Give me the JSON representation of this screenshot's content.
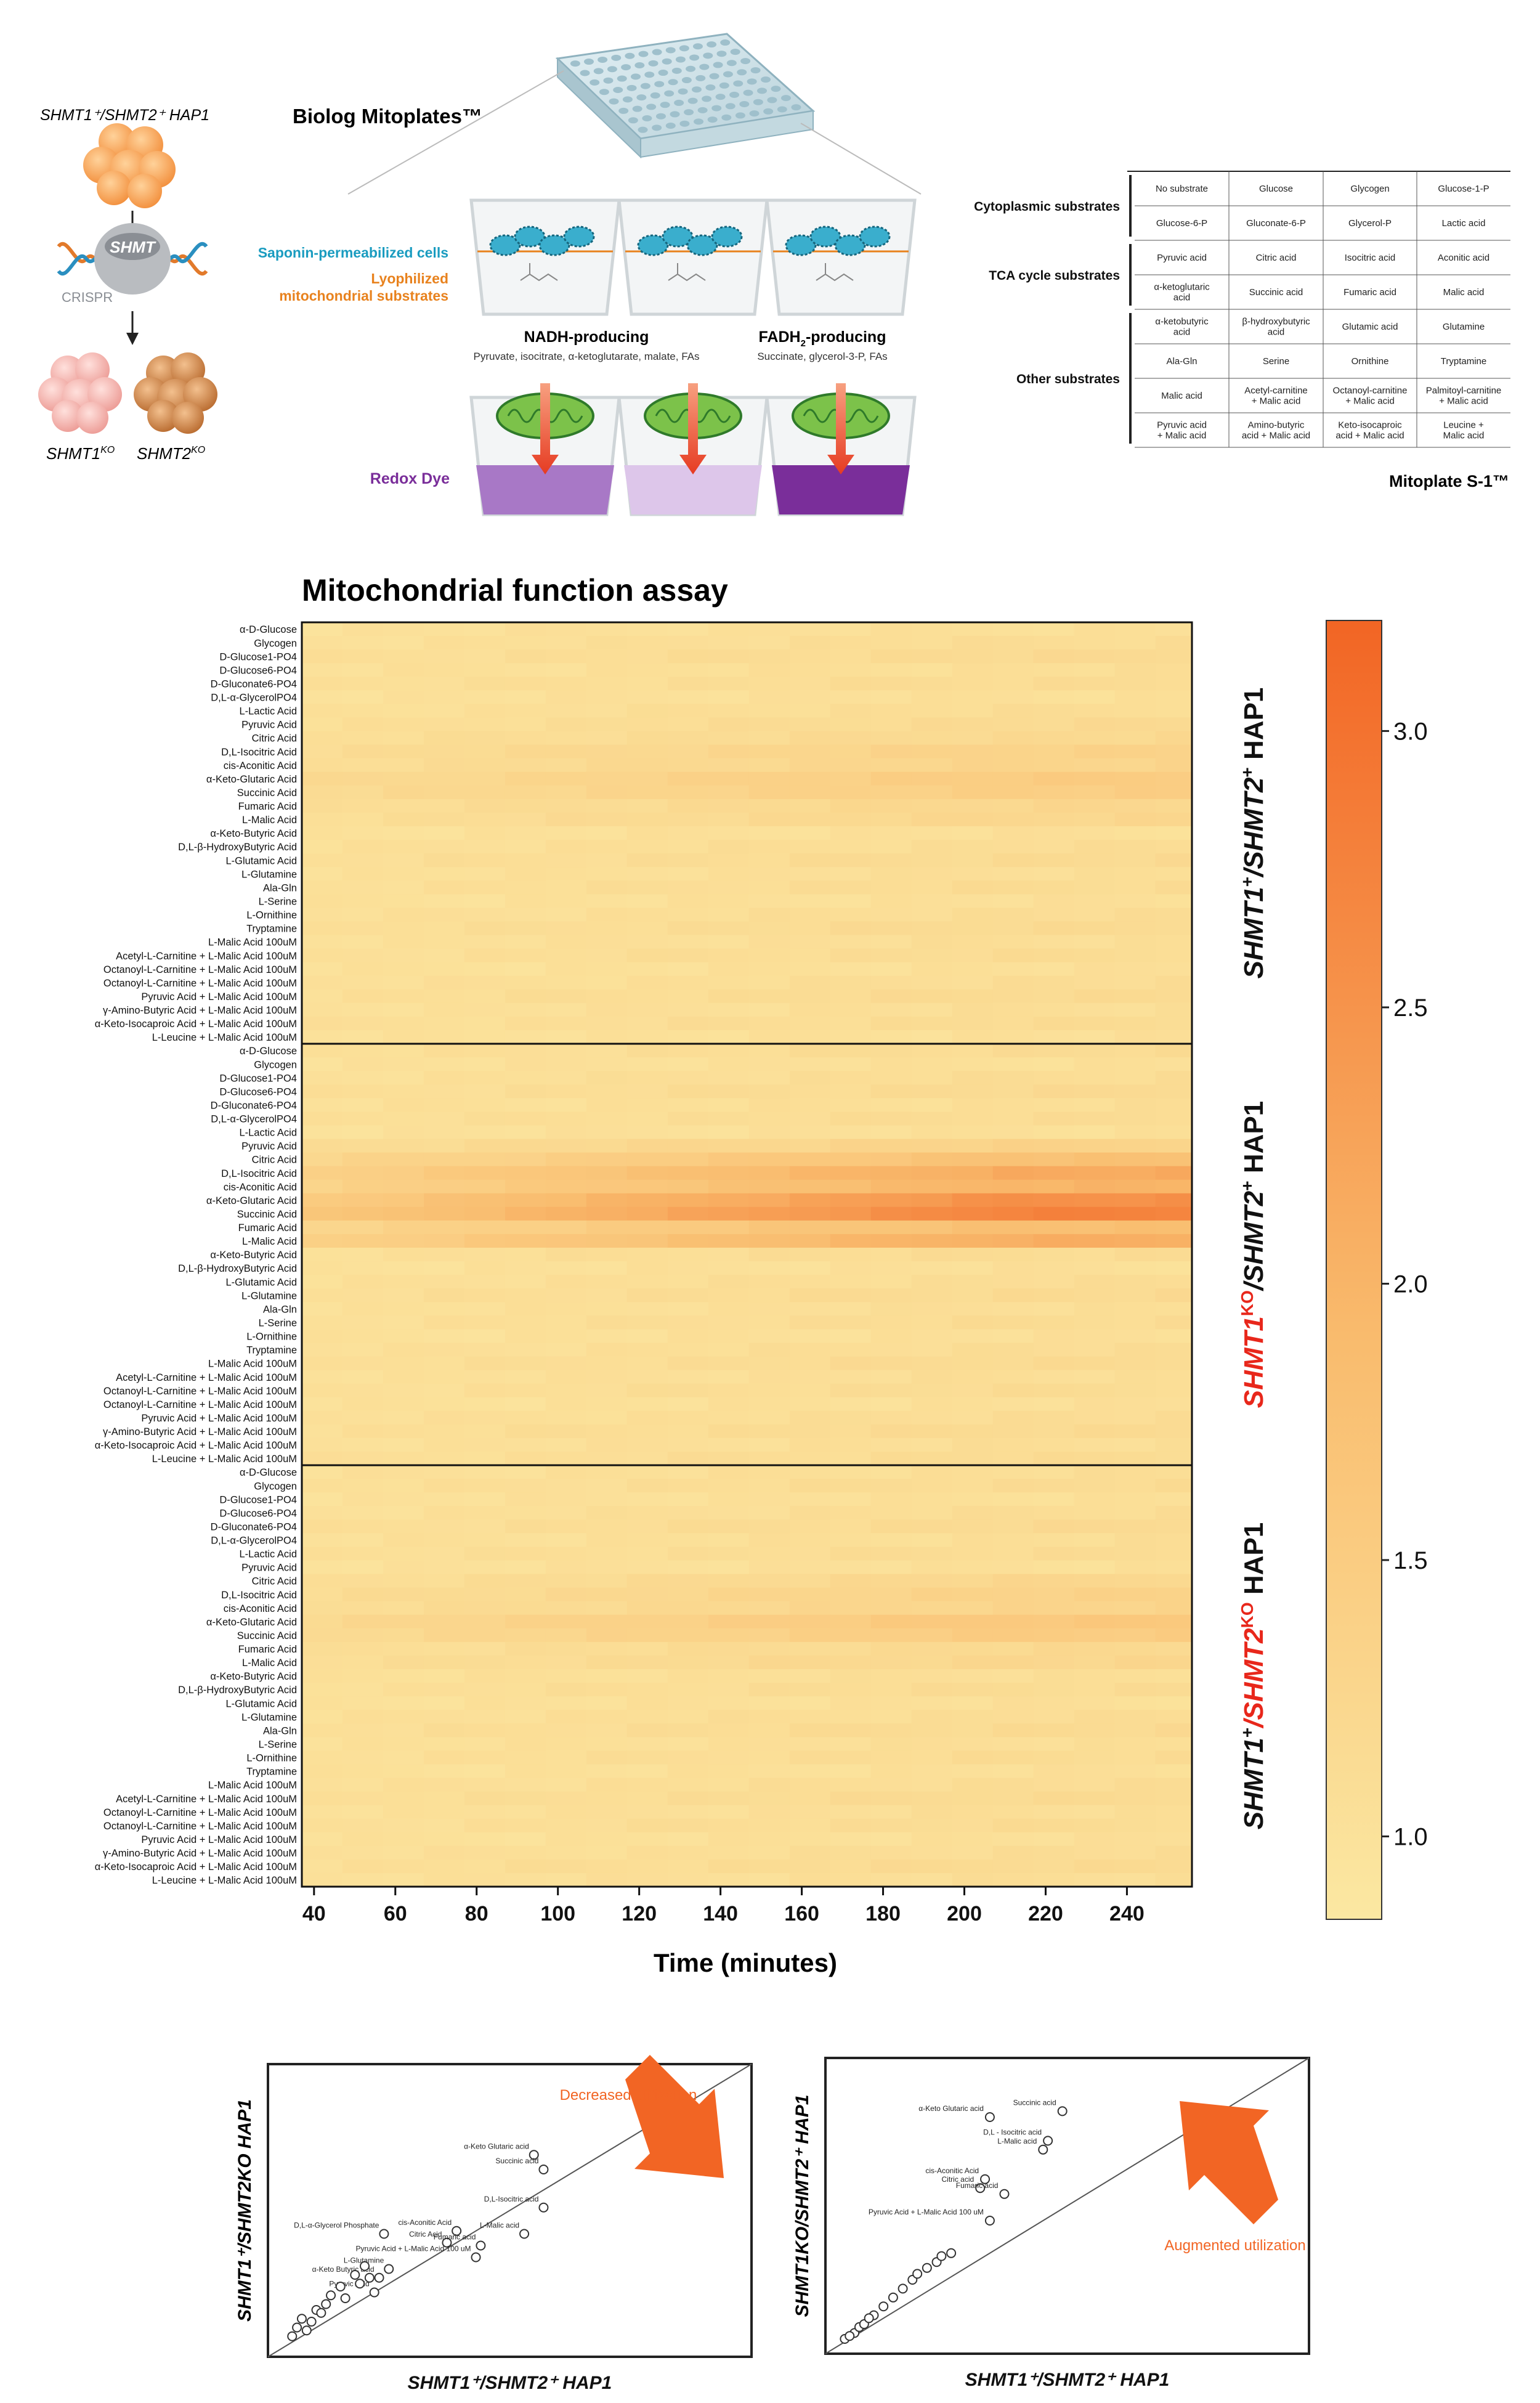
{
  "schematic": {
    "parent_line": "SHMT1⁺/SHMT2⁺ HAP1",
    "crispr_label": "CRISPR",
    "gene_label": "SHMT",
    "ko1": "SHMT1",
    "ko1_sup": "KO",
    "ko2": "SHMT2",
    "ko2_sup": "KO",
    "biolog_title": "Biolog Mitoplates™",
    "saponin_label": "Saponin-permeabilized cells",
    "lyophilized_label_1": "Lyophilized",
    "lyophilized_label_2": "mitochondrial substrates",
    "nadh_title": "NADH-producing",
    "nadh_sub": "Pyruvate, isocitrate, α-ketoglutarate, malate, FAs",
    "fadh_title_a": "FADH",
    "fadh_title_sub": "2",
    "fadh_title_b": "-producing",
    "fadh_sub": "Succinate, glycerol-3-P, FAs",
    "redox_label": "Redox Dye",
    "colors": {
      "teal": "#1a9cc0",
      "orange": "#e8821e",
      "purple": "#7a2e9a",
      "red_arrow": "#e8402a"
    }
  },
  "mitoplate": {
    "caption": "Mitoplate S-1™",
    "groups": [
      {
        "name": "Cytoplasmic substrates",
        "rows": [
          [
            "No substrate",
            "Glucose",
            "Glycogen",
            "Glucose-1-P"
          ],
          [
            "Glucose-6-P",
            "Gluconate-6-P",
            "Glycerol-P",
            "Lactic acid"
          ]
        ]
      },
      {
        "name": "TCA cycle substrates",
        "rows": [
          [
            "Pyruvic acid",
            "Citric acid",
            "Isocitric acid",
            "Aconitic acid"
          ],
          [
            "α-ketoglutaric acid",
            "Succinic acid",
            "Fumaric acid",
            "Malic acid"
          ]
        ]
      },
      {
        "name": "Other substrates",
        "rows": [
          [
            "α-ketobutyric acid",
            "β-hydroxybutyric acid",
            "Glutamic acid",
            "Glutamine"
          ],
          [
            "Ala-Gln",
            "Serine",
            "Ornithine",
            "Tryptamine"
          ],
          [
            "Malic acid",
            "Acetyl-carnitine + Malic acid",
            "Octanoyl-carnitine + Malic acid",
            "Palmitoyl-carnitine + Malic acid"
          ],
          [
            "Pyruvic acid + Malic acid",
            "Amino-butyric acid + Malic acid",
            "Keto-isocaproic acid + Malic acid",
            "Leucine + Malic acid"
          ]
        ]
      }
    ]
  },
  "heatmap": {
    "title": "Mitochondrial function assay",
    "x_label": "Time (minutes)",
    "x_ticks": [
      40,
      60,
      80,
      100,
      120,
      140,
      160,
      180,
      200,
      220,
      240
    ],
    "x_range": [
      37,
      256
    ],
    "time_step_minutes": 10,
    "colorbar_ticks": [
      "3.0",
      "2.5",
      "2.0",
      "1.5",
      "1.0"
    ],
    "colorbar_tick_values": [
      3.0,
      2.5,
      2.0,
      1.5,
      1.0
    ],
    "color_range": [
      0.85,
      3.2
    ],
    "color_low": "#fbe8a2",
    "color_high": "#f26524",
    "panel1_rows": [
      "α-D-Glucose",
      "Glycogen",
      "D-Glucose1-PO4",
      "D-Glucose6-PO4",
      "D-Gluconate6-PO4",
      "D,L-α-GlycerolPO4",
      "L-Lactic Acid",
      "Pyruvic Acid",
      "Citric Acid",
      "D,L-Isocitric Acid",
      "cis-Aconitic Acid",
      "α-Keto-Glutaric Acid",
      "Succinic Acid",
      "Fumaric Acid",
      "L-Malic Acid",
      "α-Keto-Butyric Acid",
      "D,L-β-HydroxyButyric Acid",
      "L-Glutamic Acid",
      "L-Glutamine",
      "Ala-Gln",
      "L-Serine",
      "L-Ornithine",
      "Tryptamine",
      "L-Malic Acid 100uM",
      "Acetyl-L-Carnitine + L-Malic Acid 100uM",
      "Octanoyl-L-Carnitine + L-Malic Acid 100uM",
      "Octanoyl-L-Carnitine + L-Malic Acid 100uM",
      "Pyruvic Acid + L-Malic Acid 100uM",
      "γ-Amino-Butyric Acid + L-Malic Acid 100uM",
      "α-Keto-Isocaproic Acid + L-Malic Acid 100uM",
      "L-Leucine + L-Malic Acid 100uM"
    ],
    "panel2_rows": [
      "α-D-Glucose",
      "Glycogen",
      "D-Glucose1-PO4",
      "D-Glucose6-PO4",
      "D-Gluconate6-PO4",
      "D,L-α-GlycerolPO4",
      "L-Lactic Acid",
      "Pyruvic Acid",
      "Citric Acid",
      "D,L-Isocitric Acid",
      "cis-Aconitic Acid",
      "α-Keto-Glutaric Acid",
      "Succinic Acid",
      "Fumaric Acid",
      "L-Malic Acid",
      "α-Keto-Butyric Acid",
      "D,L-β-HydroxyButyric Acid",
      "L-Glutamic Acid",
      "L-Glutamine",
      "Ala-Gln",
      "L-Serine",
      "L-Ornithine",
      "Tryptamine",
      "L-Malic Acid 100uM",
      "Acetyl-L-Carnitine + L-Malic Acid 100uM",
      "Octanoyl-L-Carnitine + L-Malic Acid 100uM",
      "Octanoyl-L-Carnitine + L-Malic Acid 100uM",
      "Pyruvic Acid + L-Malic Acid 100uM",
      "γ-Amino-Butyric Acid + L-Malic Acid 100uM",
      "α-Keto-Isocaproic Acid + L-Malic Acid 100uM",
      "L-Leucine + L-Malic Acid 100uM"
    ],
    "panel3_rows": [
      "α-D-Glucose",
      "Glycogen",
      "D-Glucose1-PO4",
      "D-Glucose6-PO4",
      "D-Gluconate6-PO4",
      "D,L-α-GlycerolPO4",
      "L-Lactic Acid",
      "Pyruvic Acid",
      "Citric Acid",
      "D,L-Isocitric Acid",
      "cis-Aconitic Acid",
      "α-Keto-Glutaric Acid",
      "Succinic Acid",
      "Fumaric Acid",
      "L-Malic Acid",
      "α-Keto-Butyric Acid",
      "D,L-β-HydroxyButyric Acid",
      "L-Glutamic Acid",
      "L-Glutamine",
      "Ala-Gln",
      "L-Serine",
      "L-Ornithine",
      "Tryptamine",
      "L-Malic Acid 100uM",
      "Acetyl-L-Carnitine + L-Malic Acid 100uM",
      "Octanoyl-L-Carnitine + L-Malic Acid 100uM",
      "Octanoyl-L-Carnitine + L-Malic Acid 100uM",
      "Pyruvic Acid + L-Malic Acid 100uM",
      "γ-Amino-Butyric Acid + L-Malic Acid 100uM",
      "α-Keto-Isocaproic Acid + L-Malic Acid 100uM",
      "L-Leucine + L-Malic Acid 100uM"
    ],
    "panel_labels": [
      {
        "parts": [
          [
            "SHMT1",
            "#111"
          ],
          [
            "+",
            "#111",
            "sup"
          ],
          [
            "/SHMT2",
            "#111"
          ],
          [
            "+",
            "#111",
            "sup"
          ],
          [
            " HAP1",
            "#111",
            "normal"
          ]
        ]
      },
      {
        "parts": [
          [
            "SHMT1",
            "#e8271b"
          ],
          [
            "KO",
            "#e8271b",
            "sup"
          ],
          [
            "/SHMT2",
            "#111"
          ],
          [
            "+",
            "#111",
            "sup"
          ],
          [
            " HAP1",
            "#111",
            "normal"
          ]
        ]
      },
      {
        "parts": [
          [
            "SHMT1",
            "#111"
          ],
          [
            "+",
            "#111",
            "sup"
          ],
          [
            "/SHMT2",
            "#e8271b"
          ],
          [
            "KO",
            "#e8271b",
            "sup"
          ],
          [
            " HAP1",
            "#111",
            "normal"
          ]
        ]
      }
    ],
    "peak_values": {
      "panel1": {
        "α-Keto-Glutaric Acid": 1.5,
        "Succinic Acid": 1.45,
        "D,L-Isocitric Acid": 1.35,
        "cis-Aconitic Acid": 1.3,
        "L-Malic Acid": 1.25,
        "Fumaric Acid": 1.25,
        "Citric Acid": 1.2
      },
      "panel2": {
        "Succinic Acid": 2.75,
        "α-Keto-Glutaric Acid": 2.55,
        "D,L-Isocitric Acid": 2.15,
        "cis-Aconitic Acid": 2.0,
        "L-Malic Acid": 2.1,
        "Fumaric Acid": 1.8,
        "Citric Acid": 1.75,
        "Pyruvic Acid": 1.35
      },
      "panel3": {
        "α-Keto-Glutaric Acid": 1.6,
        "Succinic Acid": 1.5,
        "D,L-Isocitric Acid": 1.35,
        "cis-Aconitic Acid": 1.3,
        "L-Malic Acid": 1.25,
        "Fumaric Acid": 1.2,
        "Citric Acid": 1.25
      }
    }
  },
  "chart_data": [
    {
      "type": "scatter",
      "title": "",
      "xlabel": "SHMT1⁺/SHMT2⁺ HAP1",
      "ylabel": "SHMT1⁺/SHMT2KO HAP1",
      "xlim": [
        0,
        1
      ],
      "ylim": [
        0,
        1
      ],
      "annotation": "Decreased utilization",
      "points": [
        {
          "x": 0.55,
          "y": 0.69,
          "label": "α-Keto Glutaric acid"
        },
        {
          "x": 0.57,
          "y": 0.64,
          "label": "Succinic acid"
        },
        {
          "x": 0.57,
          "y": 0.51,
          "label": "D,L-Isocitric acid"
        },
        {
          "x": 0.53,
          "y": 0.42,
          "label": "L-Malic acid"
        },
        {
          "x": 0.39,
          "y": 0.43,
          "label": "cis-Aconitic Acid"
        },
        {
          "x": 0.37,
          "y": 0.39,
          "label": "Citric Acid"
        },
        {
          "x": 0.44,
          "y": 0.38,
          "label": "Fumaric acid"
        },
        {
          "x": 0.43,
          "y": 0.34,
          "label": "Pyruvic Acid + L-Malic Acid 100 uM"
        },
        {
          "x": 0.24,
          "y": 0.42,
          "label": "D,L-α-Glycerol Phosphate"
        },
        {
          "x": 0.25,
          "y": 0.3,
          "label": "L-Glutamine"
        },
        {
          "x": 0.23,
          "y": 0.27,
          "label": "α-Keto Butyric acid"
        },
        {
          "x": 0.22,
          "y": 0.22,
          "label": "Pyruvic Acid"
        },
        {
          "x": 0.06,
          "y": 0.1,
          "label": ""
        },
        {
          "x": 0.07,
          "y": 0.13,
          "label": ""
        },
        {
          "x": 0.08,
          "y": 0.09,
          "label": ""
        },
        {
          "x": 0.09,
          "y": 0.12,
          "label": ""
        },
        {
          "x": 0.1,
          "y": 0.16,
          "label": ""
        },
        {
          "x": 0.12,
          "y": 0.18,
          "label": ""
        },
        {
          "x": 0.13,
          "y": 0.21,
          "label": ""
        },
        {
          "x": 0.15,
          "y": 0.24,
          "label": ""
        },
        {
          "x": 0.16,
          "y": 0.2,
          "label": ""
        },
        {
          "x": 0.18,
          "y": 0.28,
          "label": ""
        },
        {
          "x": 0.19,
          "y": 0.25,
          "label": ""
        },
        {
          "x": 0.2,
          "y": 0.31,
          "label": ""
        },
        {
          "x": 0.21,
          "y": 0.27,
          "label": ""
        },
        {
          "x": 0.05,
          "y": 0.07,
          "label": ""
        },
        {
          "x": 0.11,
          "y": 0.15,
          "label": ""
        }
      ]
    },
    {
      "type": "scatter",
      "title": "",
      "xlabel": "SHMT1⁺/SHMT2⁺ HAP1",
      "ylabel": "SHMT1KO/SHMT2⁺ HAP1",
      "xlim": [
        0,
        1
      ],
      "ylim": [
        0,
        1
      ],
      "annotation": "Augmented utilization",
      "points": [
        {
          "x": 0.49,
          "y": 0.82,
          "label": "Succinic acid"
        },
        {
          "x": 0.34,
          "y": 0.8,
          "label": "α-Keto Glutaric acid"
        },
        {
          "x": 0.46,
          "y": 0.72,
          "label": "D,L - Isocitric acid"
        },
        {
          "x": 0.45,
          "y": 0.69,
          "label": "L-Malic acid"
        },
        {
          "x": 0.33,
          "y": 0.59,
          "label": "cis-Aconitic Acid"
        },
        {
          "x": 0.32,
          "y": 0.56,
          "label": "Citric acid"
        },
        {
          "x": 0.37,
          "y": 0.54,
          "label": "Fumaric acid"
        },
        {
          "x": 0.34,
          "y": 0.45,
          "label": "Pyruvic Acid + L-Malic Acid 100 uM"
        },
        {
          "x": 0.04,
          "y": 0.05,
          "label": ""
        },
        {
          "x": 0.06,
          "y": 0.07,
          "label": ""
        },
        {
          "x": 0.07,
          "y": 0.09,
          "label": ""
        },
        {
          "x": 0.08,
          "y": 0.1,
          "label": ""
        },
        {
          "x": 0.1,
          "y": 0.13,
          "label": ""
        },
        {
          "x": 0.12,
          "y": 0.16,
          "label": ""
        },
        {
          "x": 0.14,
          "y": 0.19,
          "label": ""
        },
        {
          "x": 0.16,
          "y": 0.22,
          "label": ""
        },
        {
          "x": 0.18,
          "y": 0.25,
          "label": ""
        },
        {
          "x": 0.19,
          "y": 0.27,
          "label": ""
        },
        {
          "x": 0.21,
          "y": 0.29,
          "label": ""
        },
        {
          "x": 0.23,
          "y": 0.31,
          "label": ""
        },
        {
          "x": 0.24,
          "y": 0.33,
          "label": ""
        },
        {
          "x": 0.26,
          "y": 0.34,
          "label": ""
        },
        {
          "x": 0.09,
          "y": 0.12,
          "label": ""
        },
        {
          "x": 0.05,
          "y": 0.06,
          "label": ""
        }
      ]
    }
  ]
}
